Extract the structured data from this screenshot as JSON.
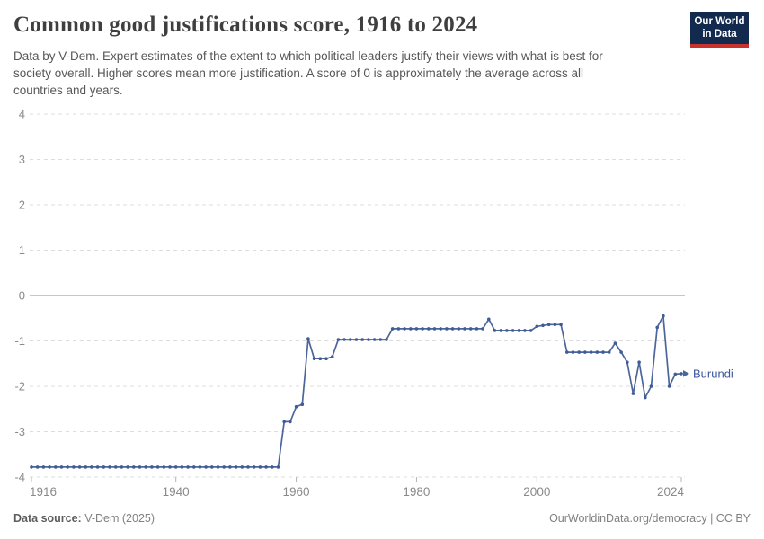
{
  "header": {
    "title": "Common good justifications score, 1916 to 2024",
    "subtitle_lines": [
      "Data by V-Dem. Expert estimates of the extent to which political leaders justify their views with what is best for",
      "society overall. Higher scores mean more justification. A score of 0 is approximately the average across all",
      "countries and years."
    ],
    "logo": {
      "line1": "Our World",
      "line2": "in Data"
    }
  },
  "footer": {
    "source_label": "Data source:",
    "source_value": " V-Dem (2025)",
    "credit": "OurWorldinData.org/democracy | CC BY"
  },
  "colors": {
    "line": "#4c669c",
    "dot": "#3f5c97",
    "entity_label": "#3a559b",
    "logo_bg": "#122a4d",
    "logo_bar": "#c8322d",
    "grid": "#dcdcdc",
    "zero_line": "#a3a3a3",
    "tick_text": "#8a8a8a"
  },
  "chart_data": {
    "type": "line",
    "title": "Common good justifications score, 1916 to 2024",
    "xlabel": "",
    "ylabel": "",
    "xlim": [
      1916,
      2024
    ],
    "ylim": [
      -4,
      4
    ],
    "xticks": [
      1916,
      1940,
      1960,
      1980,
      2000,
      2024
    ],
    "yticks": [
      4,
      3,
      2,
      1,
      0,
      -1,
      -2,
      -3,
      -4
    ],
    "grid": "horizontal-dashed",
    "zero_line": true,
    "legend_position": "end-of-line",
    "series": [
      {
        "name": "Burundi",
        "x_start": 1916,
        "x_step": 1,
        "values": [
          -3.78,
          -3.78,
          -3.78,
          -3.78,
          -3.78,
          -3.78,
          -3.78,
          -3.78,
          -3.78,
          -3.78,
          -3.78,
          -3.78,
          -3.78,
          -3.78,
          -3.78,
          -3.78,
          -3.78,
          -3.78,
          -3.78,
          -3.78,
          -3.78,
          -3.78,
          -3.78,
          -3.78,
          -3.78,
          -3.78,
          -3.78,
          -3.78,
          -3.78,
          -3.78,
          -3.78,
          -3.78,
          -3.78,
          -3.78,
          -3.78,
          -3.78,
          -3.78,
          -3.78,
          -3.78,
          -3.78,
          -3.78,
          -3.78,
          -2.78,
          -2.78,
          -2.45,
          -2.4,
          -0.95,
          -1.39,
          -1.39,
          -1.39,
          -1.35,
          -0.97,
          -0.97,
          -0.97,
          -0.97,
          -0.97,
          -0.97,
          -0.97,
          -0.97,
          -0.97,
          -0.73,
          -0.73,
          -0.73,
          -0.73,
          -0.73,
          -0.73,
          -0.73,
          -0.73,
          -0.73,
          -0.73,
          -0.73,
          -0.73,
          -0.73,
          -0.73,
          -0.73,
          -0.73,
          -0.52,
          -0.77,
          -0.77,
          -0.77,
          -0.77,
          -0.77,
          -0.77,
          -0.77,
          -0.68,
          -0.66,
          -0.64,
          -0.64,
          -0.64,
          -1.25,
          -1.25,
          -1.25,
          -1.25,
          -1.25,
          -1.25,
          -1.25,
          -1.25,
          -1.05,
          -1.25,
          -1.47,
          -2.16,
          -1.47,
          -2.25,
          -2.0,
          -0.7,
          -0.45,
          -2.0,
          -1.73,
          -1.72
        ]
      }
    ]
  }
}
